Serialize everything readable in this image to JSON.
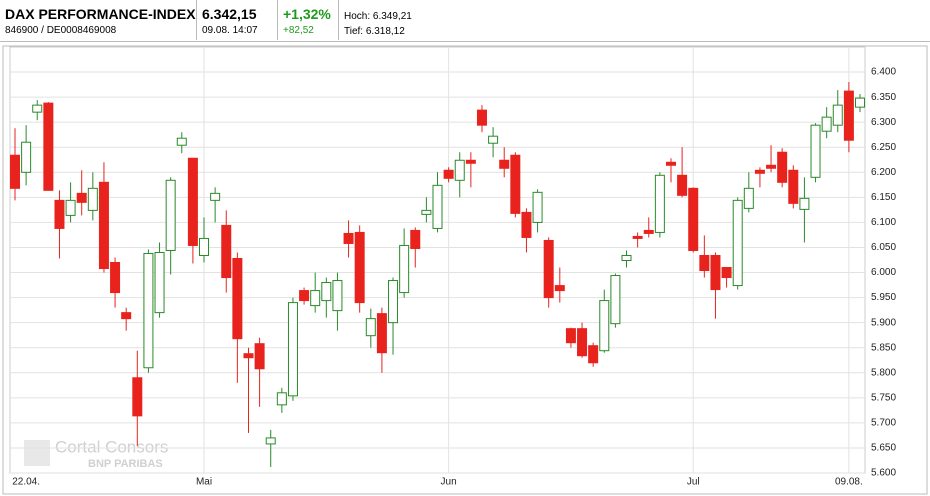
{
  "header": {
    "title": "DAX PERFORMANCE-INDEX",
    "code": "846900 / DE0008469008",
    "last": "6.342,15",
    "time": "09.08. 14:07",
    "change_pct": "+1,32%",
    "change_abs": "+82,52",
    "high": "Hoch: 6.349,21",
    "low": "Tief: 6.318,12"
  },
  "watermark": {
    "line1": "Cortal Consors",
    "line2": "BNP PARIBAS"
  },
  "chart_data": {
    "type": "candlestick",
    "categories": [
      null,
      "22.04.",
      null,
      null,
      null,
      null,
      null,
      null,
      null,
      null,
      null,
      null,
      null,
      null,
      null,
      null,
      null,
      "Mai",
      null,
      null,
      null,
      null,
      null,
      null,
      null,
      null,
      null,
      null,
      null,
      null,
      null,
      null,
      null,
      null,
      null,
      null,
      null,
      null,
      null,
      "Jun",
      null,
      null,
      null,
      null,
      null,
      null,
      null,
      null,
      null,
      null,
      null,
      null,
      null,
      null,
      null,
      null,
      null,
      null,
      null,
      null,
      null,
      "Jul",
      null,
      null,
      null,
      null,
      null,
      null,
      null,
      null,
      null,
      null,
      null,
      null,
      null,
      "09.08.",
      null
    ],
    "open": [
      6234,
      6200,
      6320,
      6338,
      6144,
      6114,
      6158,
      6124,
      6180,
      6020,
      5920,
      5790,
      5810,
      5920,
      6044,
      6254,
      6228,
      6034,
      6144,
      6094,
      6028,
      5838,
      5858,
      5658,
      5736,
      5754,
      5964,
      5934,
      5944,
      5924,
      6078,
      6080,
      5874,
      5918,
      5900,
      5960,
      6084,
      6116,
      6088,
      6204,
      6184,
      6224,
      6324,
      6258,
      6224,
      6234,
      6120,
      6100,
      6064,
      5974,
      5888,
      5888,
      5854,
      5844,
      5898,
      6024,
      6072,
      6084,
      6080,
      6220,
      6194,
      6168,
      6034,
      6034,
      6010,
      5974,
      6128,
      6204,
      6214,
      6240,
      6204,
      6126,
      6190,
      6282,
      6294,
      6362,
      6330
    ],
    "high": [
      6288,
      6294,
      6344,
      6340,
      6164,
      6180,
      6204,
      6200,
      6220,
      6030,
      5930,
      5844,
      6046,
      6060,
      6190,
      6280,
      6228,
      6110,
      6170,
      6124,
      6040,
      5850,
      5870,
      5686,
      5770,
      5950,
      5970,
      6000,
      5990,
      6000,
      6104,
      6094,
      5928,
      5930,
      5990,
      6088,
      6090,
      6150,
      6200,
      6210,
      6240,
      6240,
      6334,
      6290,
      6250,
      6240,
      6128,
      6166,
      6070,
      6010,
      5890,
      5900,
      5860,
      5966,
      5998,
      6044,
      6080,
      6110,
      6200,
      6228,
      6250,
      6170,
      6074,
      6040,
      6010,
      6150,
      6200,
      6210,
      6254,
      6248,
      6214,
      6190,
      6298,
      6330,
      6364,
      6380,
      6356
    ],
    "low": [
      6144,
      6174,
      6304,
      6164,
      6028,
      6100,
      6114,
      6104,
      6000,
      5930,
      5884,
      5654,
      5800,
      5910,
      5996,
      6238,
      6018,
      6020,
      6100,
      5960,
      5780,
      5680,
      5732,
      5612,
      5720,
      5744,
      5936,
      5920,
      5910,
      5884,
      6030,
      5920,
      5850,
      5800,
      5836,
      5950,
      6010,
      6100,
      6080,
      6180,
      6150,
      6170,
      6280,
      6230,
      6190,
      6110,
      6040,
      6080,
      5930,
      5940,
      5850,
      5830,
      5812,
      5840,
      5890,
      6010,
      6050,
      6070,
      6070,
      6180,
      6150,
      6040,
      5990,
      5908,
      5970,
      5966,
      6120,
      6170,
      6200,
      6170,
      6128,
      6060,
      6180,
      6268,
      6280,
      6240,
      6320
    ],
    "close": [
      6168,
      6260,
      6334,
      6164,
      6088,
      6144,
      6140,
      6168,
      6008,
      5960,
      5908,
      5714,
      6038,
      6040,
      6184,
      6268,
      6054,
      6068,
      6158,
      5990,
      5868,
      5830,
      5808,
      5670,
      5760,
      5940,
      5944,
      5964,
      5980,
      5984,
      6058,
      5940,
      5908,
      5840,
      5984,
      6054,
      6048,
      6124,
      6174,
      6188,
      6224,
      6218,
      6294,
      6272,
      6208,
      6118,
      6070,
      6160,
      5950,
      5964,
      5860,
      5834,
      5820,
      5944,
      5994,
      6034,
      6068,
      6078,
      6194,
      6214,
      6154,
      6044,
      6004,
      5966,
      5990,
      6144,
      6168,
      6198,
      6208,
      6180,
      6138,
      6148,
      6294,
      6310,
      6334,
      6264,
      6348
    ],
    "up_color": "#2a8a2a",
    "down_color": "#e8231d",
    "ylim": [
      5600,
      6450
    ],
    "yticks": [
      {
        "value": 5600,
        "label": "5.600"
      },
      {
        "value": 5650,
        "label": "5.650"
      },
      {
        "value": 5700,
        "label": "5.700"
      },
      {
        "value": 5750,
        "label": "5.750"
      },
      {
        "value": 5800,
        "label": "5.800"
      },
      {
        "value": 5850,
        "label": "5.850"
      },
      {
        "value": 5900,
        "label": "5.900"
      },
      {
        "value": 5950,
        "label": "5.950"
      },
      {
        "value": 6000,
        "label": "6.000"
      },
      {
        "value": 6050,
        "label": "6.050"
      },
      {
        "value": 6100,
        "label": "6.100"
      },
      {
        "value": 6150,
        "label": "6.150"
      },
      {
        "value": 6200,
        "label": "6.200"
      },
      {
        "value": 6250,
        "label": "6.250"
      },
      {
        "value": 6300,
        "label": "6.300"
      },
      {
        "value": 6350,
        "label": "6.350"
      },
      {
        "value": 6400,
        "label": "6.400"
      }
    ],
    "grid": true
  }
}
